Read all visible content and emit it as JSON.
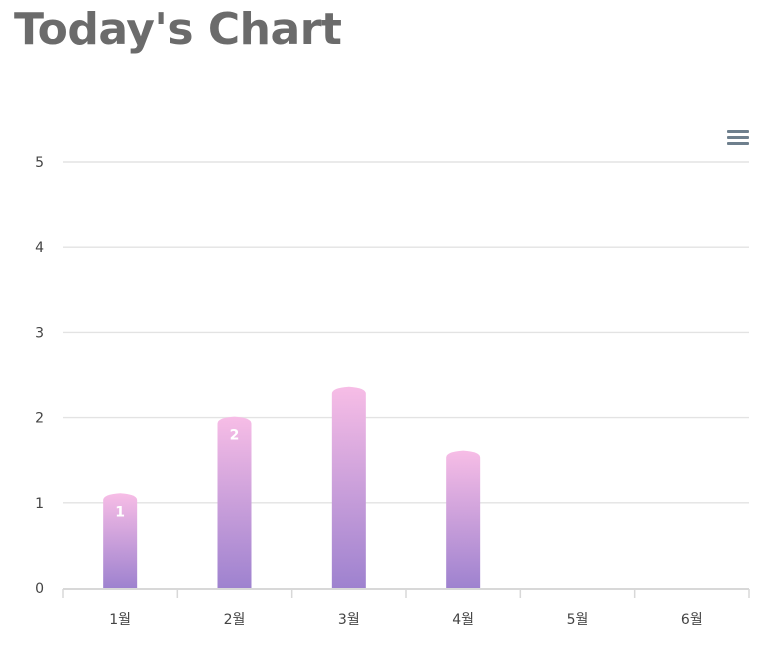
{
  "header": {
    "title": "Today's Chart"
  },
  "toolbar": {
    "menu_icon": "hamburger-menu-icon"
  },
  "colors": {
    "bar_top": "#f7bde6",
    "bar_bottom": "#9e82cf",
    "grid": "#e3e3e3",
    "tick_text": "#444444",
    "title": "#6b6b6b"
  },
  "chart_data": {
    "type": "bar",
    "title": "",
    "xlabel": "",
    "ylabel": "",
    "categories": [
      "1월",
      "2월",
      "3월",
      "4월",
      "5월",
      "6월"
    ],
    "values": [
      1.1,
      2.0,
      2.35,
      1.6,
      null,
      null
    ],
    "data_labels": [
      "1",
      "2",
      "",
      "",
      "",
      ""
    ],
    "ylim": [
      0,
      5
    ],
    "yticks": [
      "0",
      "1",
      "2",
      "3",
      "4",
      "5"
    ],
    "grid": true,
    "legend": "none"
  }
}
